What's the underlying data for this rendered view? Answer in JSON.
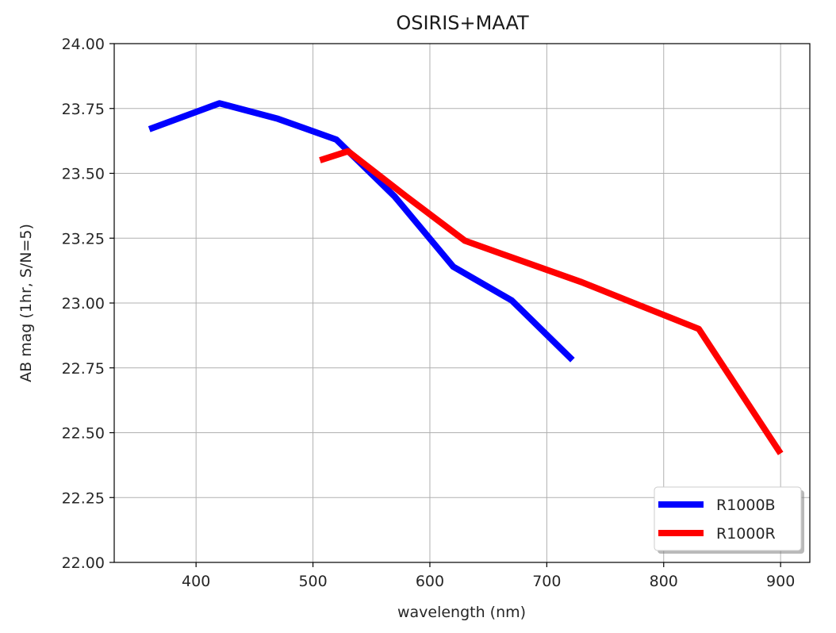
{
  "chart_data": {
    "type": "line",
    "title": "OSIRIS+MAAT",
    "xlabel": "wavelength (nm)",
    "ylabel": "AB mag (1hr, S/N=5)",
    "xlim": [
      330,
      925
    ],
    "ylim": [
      22.0,
      24.0
    ],
    "xticks": [
      400,
      500,
      600,
      700,
      800,
      900
    ],
    "yticks": [
      22.0,
      22.25,
      22.5,
      22.75,
      23.0,
      23.25,
      23.5,
      23.75,
      24.0
    ],
    "xtick_labels": [
      "400",
      "500",
      "600",
      "700",
      "800",
      "900"
    ],
    "ytick_labels": [
      "22.00",
      "22.25",
      "22.50",
      "22.75",
      "23.00",
      "23.25",
      "23.50",
      "23.75",
      "24.00"
    ],
    "grid": true,
    "legend_position": "lower-right",
    "series": [
      {
        "name": "R1000B",
        "color": "#0000ff",
        "x": [
          360,
          420,
          470,
          520,
          570,
          620,
          670,
          722
        ],
        "y": [
          23.67,
          23.77,
          23.71,
          23.63,
          23.41,
          23.14,
          23.01,
          22.78
        ]
      },
      {
        "name": "R1000R",
        "color": "#ff0000",
        "x": [
          506,
          530,
          580,
          630,
          680,
          730,
          780,
          830,
          900
        ],
        "y": [
          23.55,
          23.585,
          23.41,
          23.24,
          23.16,
          23.08,
          22.99,
          22.9,
          22.42
        ]
      }
    ]
  }
}
